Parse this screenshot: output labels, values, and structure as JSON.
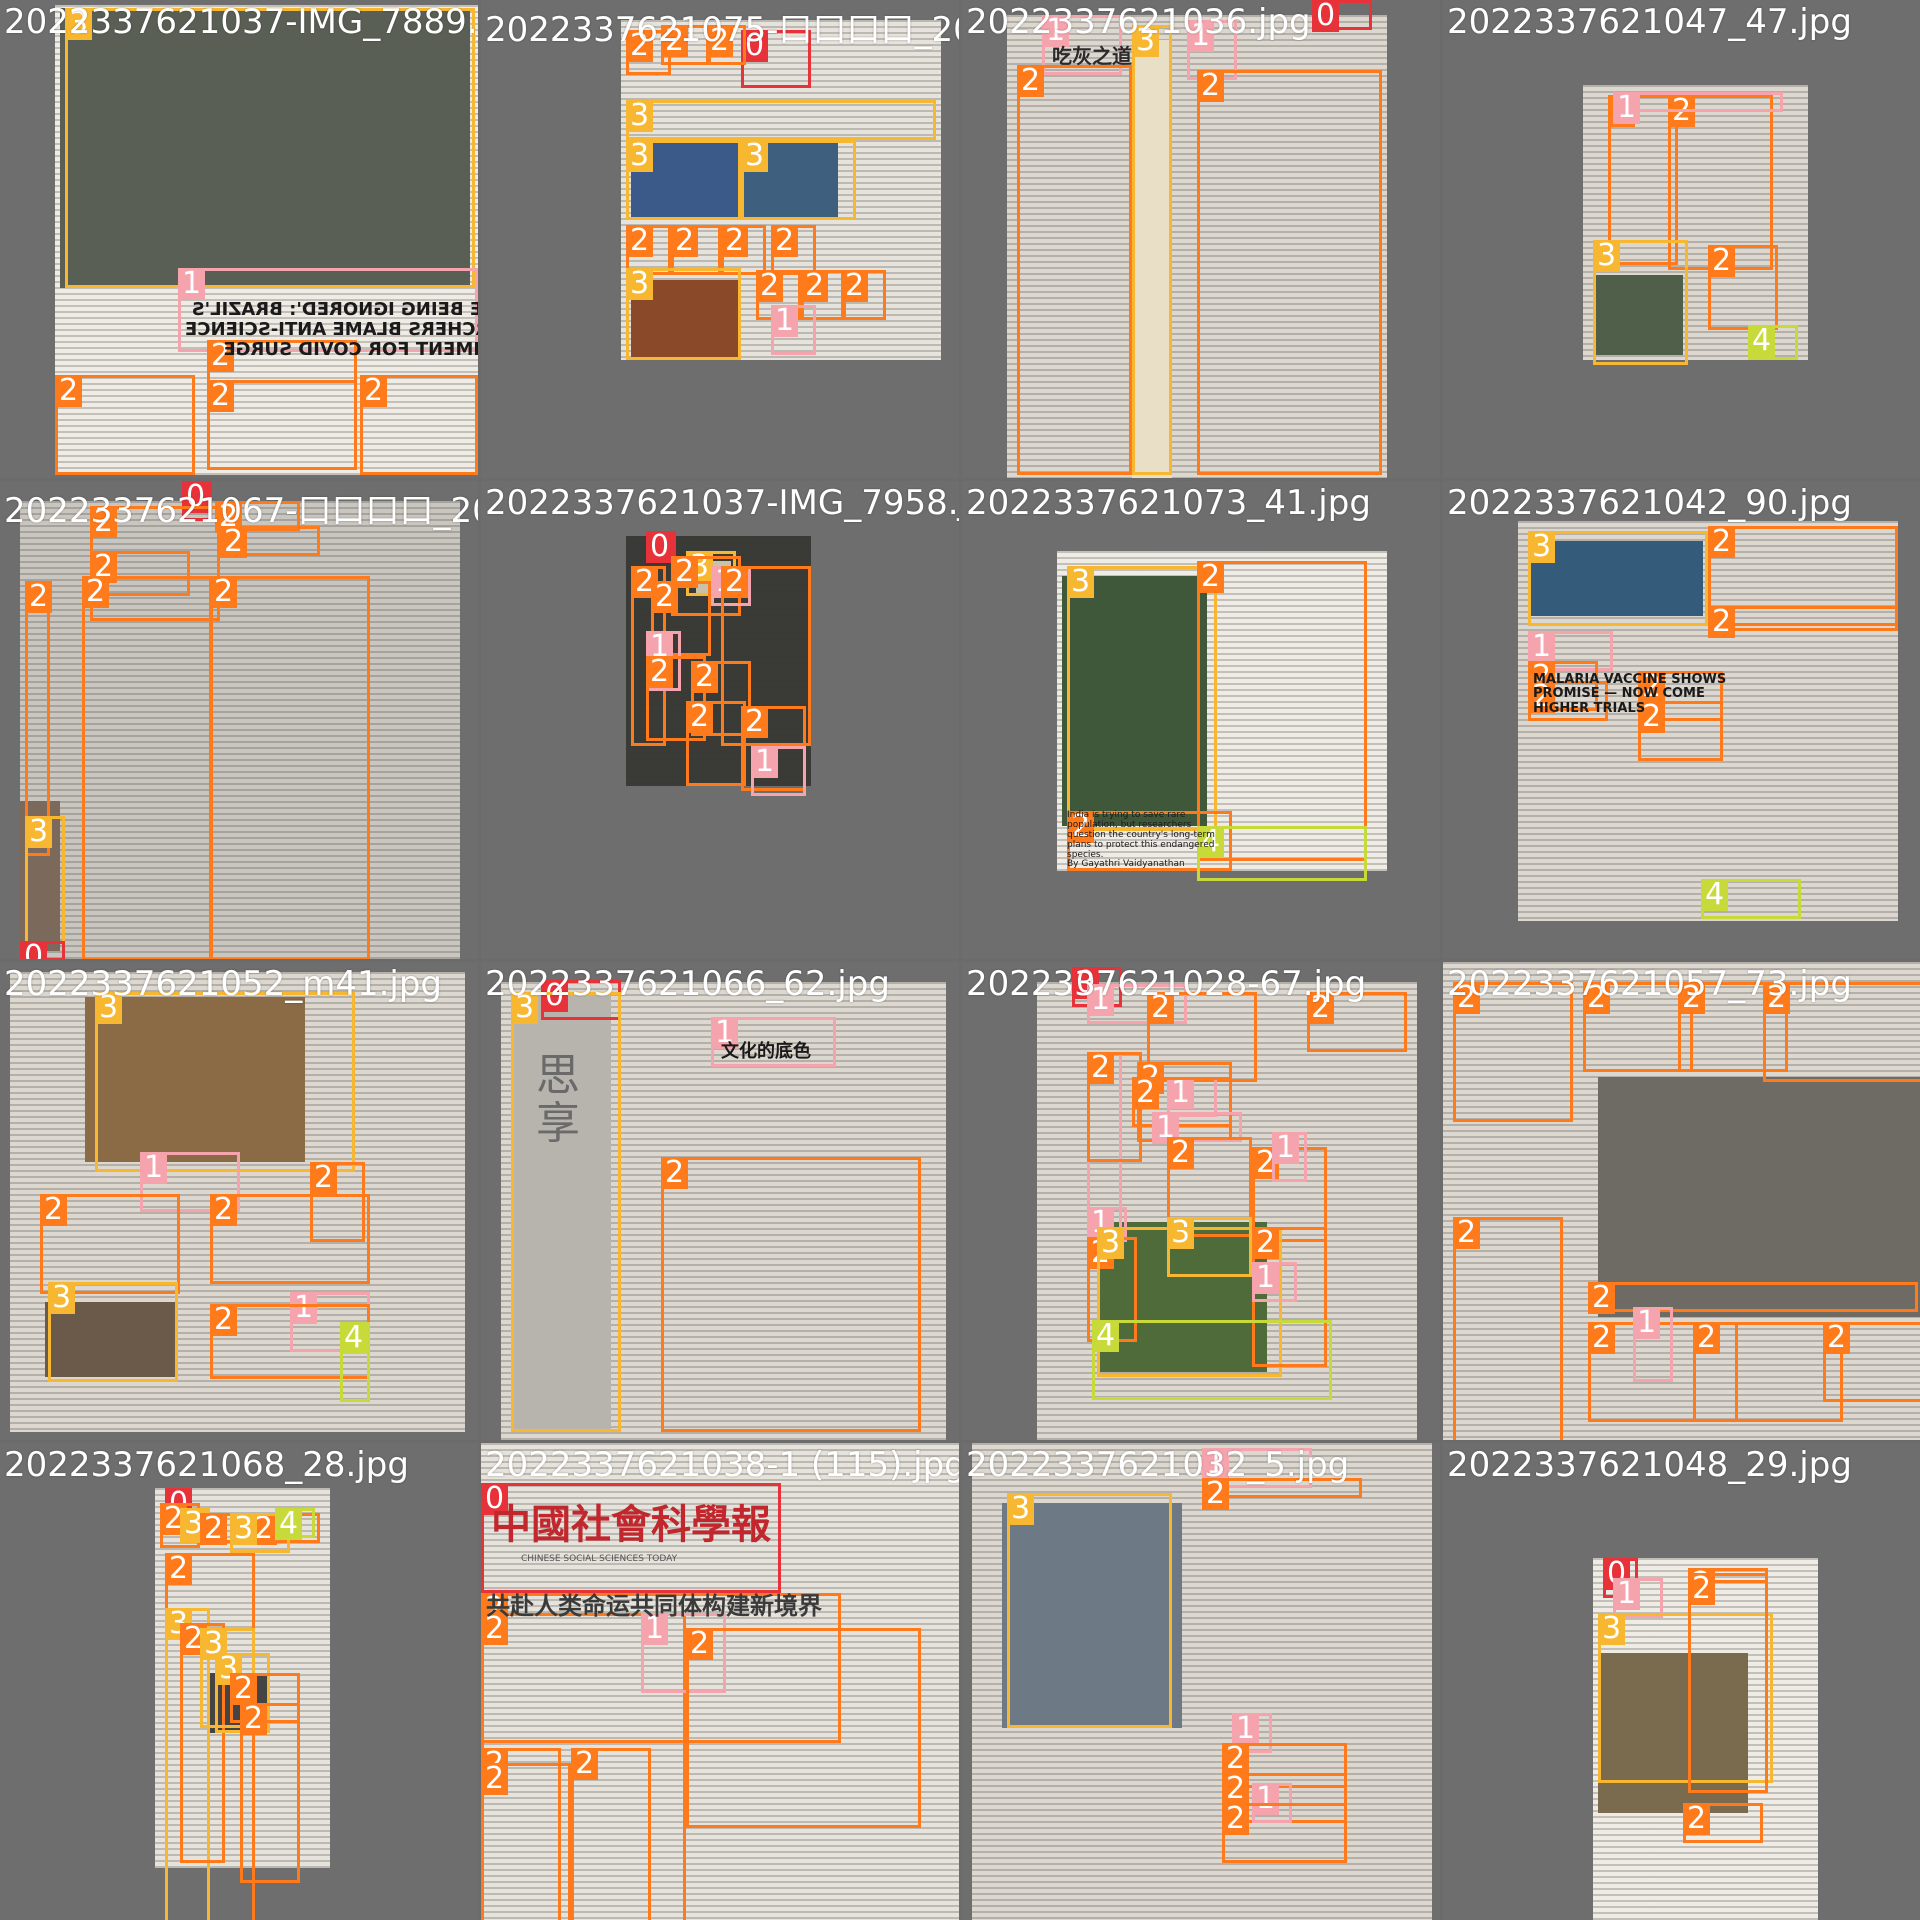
{
  "grid": {
    "filenames": [
      "2022337621037-IMG_7889.JPG",
      "2022337621075-口口口口_2022",
      "2022337621036.jpg",
      "2022337621047_47.jpg",
      "2022337621067-口口口口_2022",
      "2022337621037-IMG_7958.JPG",
      "2022337621073_41.jpg",
      "2022337621042_90.jpg",
      "2022337621052_m41.jpg",
      "2022337621066_62.jpg",
      "2022337621028-67.jpg",
      "2022337621057_73.jpg",
      "2022337621068_28.jpg",
      "2022337621038-1 (115).jpg",
      "2022337621032_5.jpg",
      "2022337621048_29.jpg"
    ],
    "class_colors": {
      "0": "#e8323a",
      "1": "#f5a3ad",
      "2": "#ff7a1a",
      "3": "#f7b731",
      "4": "#c8d93a"
    },
    "cell_texts": {
      "c0_head": "E ARE BEING IGNORED': BRAZIL'S\nSEARCHERS BLAME ANTI-SCIENCE\nVERNMENT FOR COVID SURGE",
      "c2_title": "吃灰之道",
      "c6_caption": "India is trying to save rare population, but researchers question the country's long-term plans to protect this endangered species.\nBy Gayathri Vaidyanathan",
      "c7_head": "MALARIA VACCINE SHOWS\nPROMISE — NOW COME\nHIGHER TRIALS",
      "c9_side": "思享",
      "c9_title": "文化的底色",
      "c13_mast": "中國社會科學報",
      "c13_sub": "CHINESE SOCIAL SCIENCES TODAY",
      "c13_head": "共赴人类命运共同体构建新境界"
    }
  }
}
